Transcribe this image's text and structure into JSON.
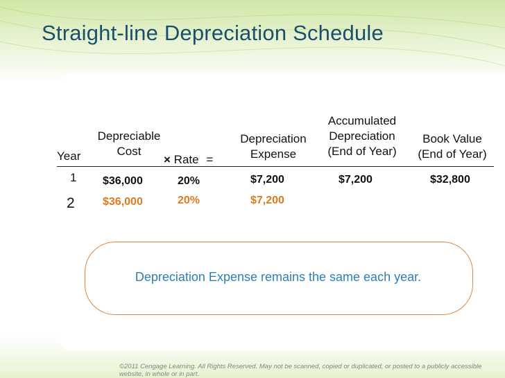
{
  "title": "Straight-line Depreciation Schedule",
  "headers": {
    "year": "Year",
    "depreciable_line1": "Depreciable",
    "depreciable_line2": "Cost",
    "rate_op": "×",
    "rate": "Rate",
    "equals": "=",
    "expense_line1": "Depreciation",
    "expense_line2": "Expense",
    "accum_line1": "Accumulated",
    "accum_line2": "Depreciation",
    "accum_line3": "(End of Year)",
    "book_line1": "Book Value",
    "book_line2": "(End of Year)"
  },
  "rows": [
    {
      "year": "1",
      "cost": "$36,000",
      "rate": "20%",
      "expense": "$7,200",
      "accumulated": "$7,200",
      "book_value": "$32,800"
    },
    {
      "year": "2",
      "cost": "$36,000",
      "rate": "20%",
      "expense": "$7,200",
      "accumulated": "",
      "book_value": ""
    }
  ],
  "note": "Depreciation Expense remains the same each year.",
  "copyright": "©2011 Cengage Learning. All Rights Reserved. May not be scanned, copied or duplicated, or posted to a publicly accessible website, in whole or in part.",
  "colors": {
    "title": "#1c4f6e",
    "highlight": "#e07a1f",
    "note": "#2f7fb5",
    "oval": "#e0863c"
  }
}
